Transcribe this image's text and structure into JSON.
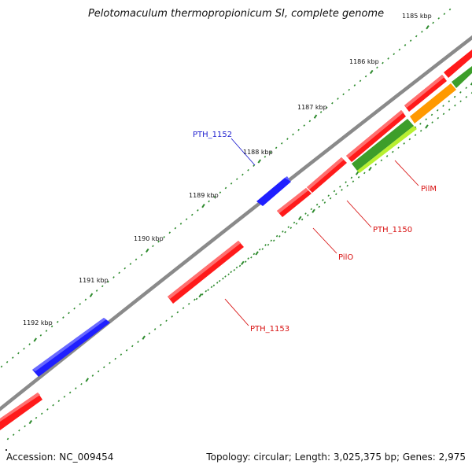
{
  "title": "Pelotomaculum thermopropionicum SI, complete genome",
  "footer": {
    "accession": "Accession: NC_009454",
    "summary": "Topology: circular; Length: 3,025,375 bp; Genes: 2,975"
  },
  "colors": {
    "backbone": "#8a8a8a",
    "tick": "#2e8b2e",
    "forward_gene": "#1f1fff",
    "reverse_gene": "#ff1a1a",
    "label_forward": "#2020d0",
    "label_reverse": "#d81010",
    "orange_gene": "#ff9900",
    "darkgreen_gene": "#3d9e2a",
    "lightgreen_gene": "#b8f030"
  },
  "ticks": [
    {
      "label": "1185 kbp"
    },
    {
      "label": "1186 kbp"
    },
    {
      "label": "1187 kbp"
    },
    {
      "label": "1188 kbp"
    },
    {
      "label": "1189 kbp"
    },
    {
      "label": "1190 kbp"
    },
    {
      "label": "1191 kbp"
    },
    {
      "label": "1192 kbp"
    }
  ],
  "genes": [
    {
      "name": "PTH_1152",
      "strand": "forward",
      "label": "PTH_1152"
    },
    {
      "name": "forward-gene-1192",
      "strand": "forward"
    },
    {
      "name": "PilM",
      "strand": "reverse",
      "label": "PilM"
    },
    {
      "name": "PTH_1150",
      "strand": "reverse",
      "label": "PTH_1150"
    },
    {
      "name": "PilO",
      "strand": "reverse",
      "label": "PilO"
    },
    {
      "name": "PTH_1153",
      "strand": "reverse",
      "label": "PTH_1153"
    }
  ]
}
